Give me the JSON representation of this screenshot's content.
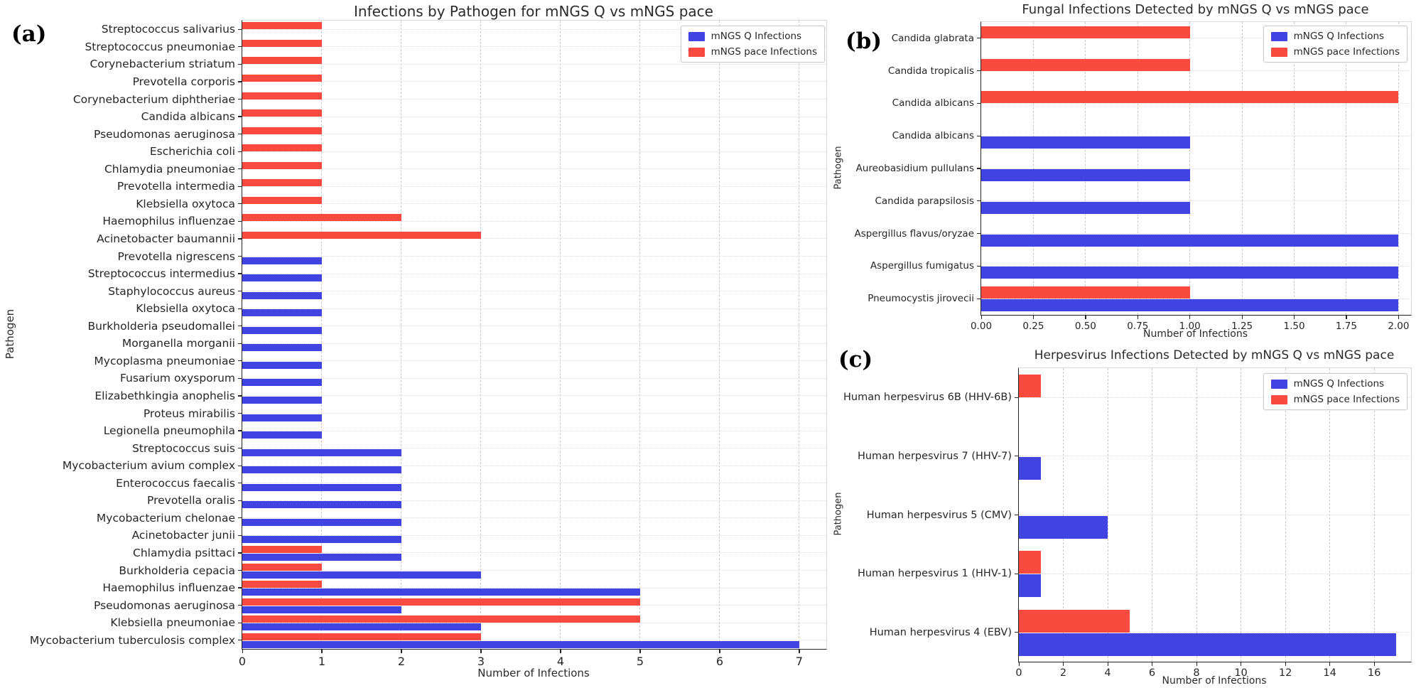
{
  "panels": {
    "a": {
      "letter": "(a)"
    },
    "b": {
      "letter": "(b)"
    },
    "c": {
      "letter": "(c)"
    }
  },
  "legend": {
    "q_label": "mNGS Q Infections",
    "pace_label": "mNGS pace Infections"
  },
  "colors": {
    "q_blue": "#4144e0",
    "pace_red": "#f94a40"
  },
  "chart_data": [
    {
      "id": "a",
      "type": "bar",
      "orientation": "horizontal",
      "title": "Infections by Pathogen for mNGS Q vs mNGS pace",
      "xlabel": "Number of Infections",
      "ylabel": "Pathogen",
      "xlim": [
        0,
        7.34
      ],
      "grid": true,
      "legend_position": "upper right",
      "xticks": [
        {
          "v": 0,
          "label": "0"
        },
        {
          "v": 1,
          "label": "1"
        },
        {
          "v": 2,
          "label": "2"
        },
        {
          "v": 3,
          "label": "3"
        },
        {
          "v": 4,
          "label": "4"
        },
        {
          "v": 5,
          "label": "5"
        },
        {
          "v": 6,
          "label": "6"
        },
        {
          "v": 7,
          "label": "7"
        }
      ],
      "series": [
        {
          "name": "mNGS Q Infections",
          "key": "q",
          "color": "#4144e0"
        },
        {
          "name": "mNGS pace Infections",
          "key": "pace",
          "color": "#f94a40"
        }
      ],
      "rows": [
        {
          "label": "Streptococcus salivarius",
          "q": 0,
          "pace": 1
        },
        {
          "label": "Streptococcus pneumoniae",
          "q": 0,
          "pace": 1
        },
        {
          "label": "Corynebacterium striatum",
          "q": 0,
          "pace": 1
        },
        {
          "label": "Prevotella corporis",
          "q": 0,
          "pace": 1
        },
        {
          "label": "Corynebacterium diphtheriae",
          "q": 0,
          "pace": 1
        },
        {
          "label": "Candida albicans",
          "q": 0,
          "pace": 1
        },
        {
          "label": "Pseudomonas aeruginosa",
          "q": 0,
          "pace": 1
        },
        {
          "label": "Escherichia coli",
          "q": 0,
          "pace": 1
        },
        {
          "label": "Chlamydia pneumoniae",
          "q": 0,
          "pace": 1
        },
        {
          "label": "Prevotella intermedia",
          "q": 0,
          "pace": 1
        },
        {
          "label": "Klebsiella oxytoca",
          "q": 0,
          "pace": 1
        },
        {
          "label": "Haemophilus influenzae",
          "q": 0,
          "pace": 2
        },
        {
          "label": "Acinetobacter baumannii",
          "q": 0,
          "pace": 3
        },
        {
          "label": "Prevotella nigrescens",
          "q": 1,
          "pace": 0
        },
        {
          "label": "Streptococcus intermedius",
          "q": 1,
          "pace": 0
        },
        {
          "label": "Staphylococcus aureus",
          "q": 1,
          "pace": 0
        },
        {
          "label": "Klebsiella oxytoca",
          "q": 1,
          "pace": 0
        },
        {
          "label": "Burkholderia pseudomallei",
          "q": 1,
          "pace": 0
        },
        {
          "label": "Morganella morganii",
          "q": 1,
          "pace": 0
        },
        {
          "label": "Mycoplasma pneumoniae",
          "q": 1,
          "pace": 0
        },
        {
          "label": "Fusarium oxysporum",
          "q": 1,
          "pace": 0
        },
        {
          "label": "Elizabethkingia anophelis",
          "q": 1,
          "pace": 0
        },
        {
          "label": "Proteus mirabilis",
          "q": 1,
          "pace": 0
        },
        {
          "label": "Legionella pneumophila",
          "q": 1,
          "pace": 0
        },
        {
          "label": "Streptococcus suis",
          "q": 2,
          "pace": 0
        },
        {
          "label": "Mycobacterium avium complex",
          "q": 2,
          "pace": 0
        },
        {
          "label": "Enterococcus faecalis",
          "q": 2,
          "pace": 0
        },
        {
          "label": "Prevotella oralis",
          "q": 2,
          "pace": 0
        },
        {
          "label": "Mycobacterium chelonae",
          "q": 2,
          "pace": 0
        },
        {
          "label": "Acinetobacter junii",
          "q": 2,
          "pace": 0
        },
        {
          "label": "Chlamydia psittaci",
          "q": 2,
          "pace": 1
        },
        {
          "label": "Burkholderia cepacia",
          "q": 3,
          "pace": 1
        },
        {
          "label": "Haemophilus influenzae",
          "q": 5,
          "pace": 1
        },
        {
          "label": "Pseudomonas aeruginosa",
          "q": 2,
          "pace": 5
        },
        {
          "label": "Klebsiella pneumoniae",
          "q": 3,
          "pace": 5
        },
        {
          "label": "Mycobacterium tuberculosis complex",
          "q": 7,
          "pace": 3
        }
      ]
    },
    {
      "id": "b",
      "type": "bar",
      "orientation": "horizontal",
      "title": "Fungal Infections Detected by mNGS Q vs mNGS pace",
      "xlabel": "Number of Infections",
      "ylabel": "Pathogen",
      "xlim": [
        0,
        2.06
      ],
      "grid": true,
      "legend_position": "upper right",
      "xticks": [
        {
          "v": 0,
          "label": "0.00"
        },
        {
          "v": 0.25,
          "label": "0.25"
        },
        {
          "v": 0.5,
          "label": "0.50"
        },
        {
          "v": 0.75,
          "label": "0.75"
        },
        {
          "v": 1,
          "label": "1.00"
        },
        {
          "v": 1.25,
          "label": "1.25"
        },
        {
          "v": 1.5,
          "label": "1.50"
        },
        {
          "v": 1.75,
          "label": "1.75"
        },
        {
          "v": 2,
          "label": "2.00"
        }
      ],
      "series": [
        {
          "name": "mNGS Q Infections",
          "key": "q",
          "color": "#4144e0"
        },
        {
          "name": "mNGS pace Infections",
          "key": "pace",
          "color": "#f94a40"
        }
      ],
      "rows": [
        {
          "label": "Candida glabrata",
          "q": 0,
          "pace": 1
        },
        {
          "label": "Candida tropicalis",
          "q": 0,
          "pace": 1
        },
        {
          "label": "Candida albicans",
          "q": 0,
          "pace": 2
        },
        {
          "label": "Candida albicans",
          "q": 1,
          "pace": 0
        },
        {
          "label": "Aureobasidium pullulans",
          "q": 1,
          "pace": 0
        },
        {
          "label": "Candida parapsilosis",
          "q": 1,
          "pace": 0
        },
        {
          "label": "Aspergillus flavus/oryzae",
          "q": 2,
          "pace": 0
        },
        {
          "label": "Aspergillus fumigatus",
          "q": 2,
          "pace": 0
        },
        {
          "label": "Pneumocystis jirovecii",
          "q": 2,
          "pace": 1
        }
      ]
    },
    {
      "id": "c",
      "type": "bar",
      "orientation": "horizontal",
      "title": "Herpesvirus Infections Detected by mNGS Q vs mNGS pace",
      "xlabel": "Number of Infections",
      "ylabel": "Pathogen",
      "xlim": [
        0,
        17.66
      ],
      "grid": true,
      "legend_position": "upper right",
      "xticks": [
        {
          "v": 0,
          "label": "0"
        },
        {
          "v": 2,
          "label": "2"
        },
        {
          "v": 4,
          "label": "4"
        },
        {
          "v": 6,
          "label": "6"
        },
        {
          "v": 8,
          "label": "8"
        },
        {
          "v": 10,
          "label": "10"
        },
        {
          "v": 12,
          "label": "12"
        },
        {
          "v": 14,
          "label": "14"
        },
        {
          "v": 16,
          "label": "16"
        }
      ],
      "series": [
        {
          "name": "mNGS Q Infections",
          "key": "q",
          "color": "#4144e0"
        },
        {
          "name": "mNGS pace Infections",
          "key": "pace",
          "color": "#f94a40"
        }
      ],
      "rows": [
        {
          "label": "Human herpesvirus 6B (HHV-6B)",
          "q": 0,
          "pace": 1
        },
        {
          "label": "Human herpesvirus 7 (HHV-7)",
          "q": 1,
          "pace": 0
        },
        {
          "label": "Human herpesvirus 5 (CMV)",
          "q": 4,
          "pace": 0
        },
        {
          "label": "Human herpesvirus 1 (HHV-1)",
          "q": 1,
          "pace": 1
        },
        {
          "label": "Human herpesvirus 4 (EBV)",
          "q": 17,
          "pace": 5
        }
      ]
    }
  ]
}
